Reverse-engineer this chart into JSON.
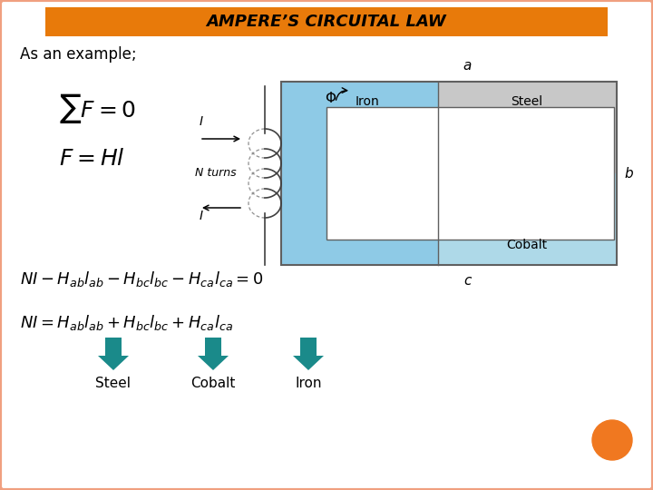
{
  "title": "AMPERE’S CIRCUITAL LAW",
  "title_bg": "#E87A0A",
  "title_color": "#000000",
  "subtitle": "As an example;",
  "bg_color": "#FFFFFF",
  "border_color": "#F0A080",
  "arrow_color": "#1A8A8A",
  "label_steel": "Steel",
  "label_cobalt": "Cobalt",
  "label_iron": "Iron",
  "iron_color": "#8ECAE6",
  "steel_color": "#C8C8C8",
  "cobalt_color": "#AED9E8",
  "diagram_border": "#606060",
  "orange_circle_color": "#F07820",
  "fig_w": 7.2,
  "fig_h": 5.4,
  "dpi": 100
}
